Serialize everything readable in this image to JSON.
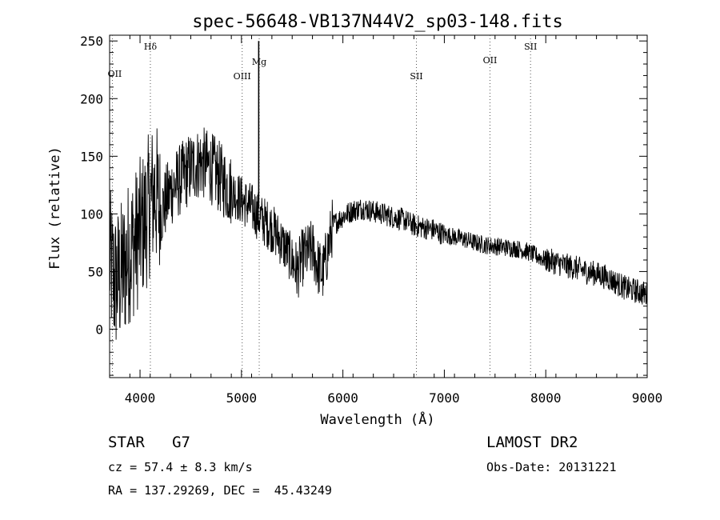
{
  "chart_data": {
    "type": "line",
    "title": "spec-56648-VB137N44V2_sp03-148.fits",
    "xlabel": "Wavelength (Å)",
    "ylabel": "Flux (relative)",
    "xlim": [
      3700,
      9000
    ],
    "ylim": [
      -42,
      255
    ],
    "xticks": [
      4000,
      5000,
      6000,
      7000,
      8000,
      9000
    ],
    "yticks": [
      0,
      50,
      100,
      150,
      200,
      250
    ],
    "grid": false,
    "series": [
      {
        "x": [
          3700,
          3750,
          3800,
          3850,
          3900,
          3950,
          4000,
          4050,
          4100,
          4150,
          4200,
          4300,
          4400,
          4500,
          4600,
          4700,
          4800,
          4900,
          5000,
          5100,
          5150,
          5200,
          5300,
          5400,
          5500,
          5550,
          5600,
          5700,
          5750,
          5800,
          5850,
          5900,
          6000,
          6100,
          6200,
          6300,
          6400,
          6500,
          6600,
          6700,
          6800,
          6900,
          7000,
          7100,
          7200,
          7300,
          7400,
          7500,
          7600,
          7700,
          7800,
          7900,
          8000,
          8100,
          8200,
          8300,
          8400,
          8500,
          8600,
          8700,
          8800,
          8900,
          9000
        ],
        "y": [
          60,
          40,
          45,
          55,
          70,
          75,
          85,
          95,
          110,
          120,
          100,
          120,
          130,
          140,
          145,
          140,
          130,
          120,
          112,
          105,
          100,
          95,
          88,
          75,
          60,
          50,
          62,
          70,
          55,
          48,
          68,
          90,
          98,
          103,
          105,
          102,
          100,
          97,
          95,
          90,
          88,
          86,
          82,
          80,
          78,
          75,
          73,
          72,
          71,
          70,
          68,
          64,
          60,
          58,
          55,
          53,
          50,
          48,
          45,
          40,
          35,
          33,
          30
        ]
      }
    ],
    "lines": [
      {
        "label": "OII",
        "x": 3727
      },
      {
        "label": "Hδ",
        "x": 4102
      },
      {
        "label": "OIII",
        "x": 5007
      },
      {
        "label": "Mg",
        "x": 5175
      },
      {
        "label": "SII",
        "x": 6725
      },
      {
        "label": "OII",
        "x": 7450
      },
      {
        "label": "SII",
        "x": 7850
      }
    ]
  },
  "info": {
    "class": "STAR",
    "subclass": "G7",
    "cz": "cz = 57.4 ± 8.3 km/s",
    "coords": "RA = 137.29269, DEC =  45.43249",
    "survey": "LAMOST DR2",
    "obs_date": "Obs-Date: 20131221"
  }
}
